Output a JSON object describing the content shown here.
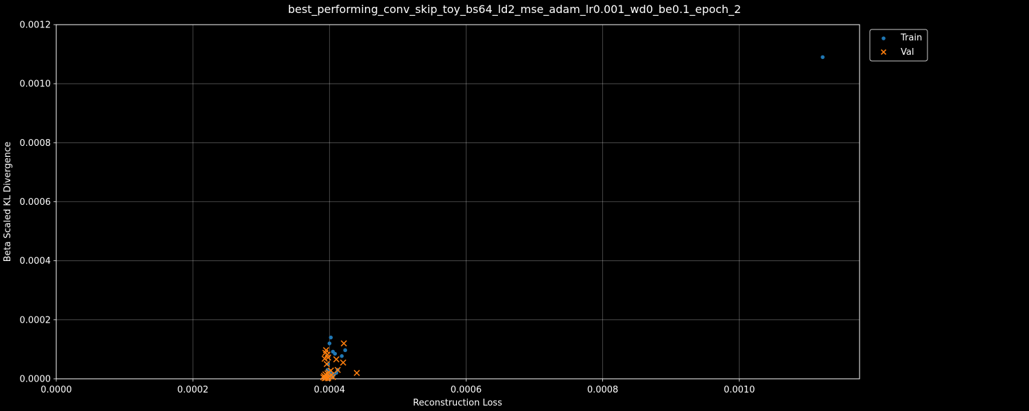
{
  "chart_data": {
    "type": "scatter",
    "title": "best_performing_conv_skip_toy_bs64_ld2_mse_adam_lr0.001_wd0_be0.1_epoch_2",
    "xlabel": "Reconstruction Loss",
    "ylabel": "Beta Scaled KL Divergence",
    "xlim": [
      0,
      0.001176
    ],
    "ylim": [
      0,
      0.0012
    ],
    "xticks": [
      "0.0000",
      "0.0002",
      "0.0004",
      "0.0006",
      "0.0008",
      "0.0010"
    ],
    "yticks": [
      "0.0000",
      "0.0002",
      "0.0004",
      "0.0006",
      "0.0008",
      "0.0010",
      "0.0012"
    ],
    "grid": true,
    "legend_position": "outside-top-right",
    "series": [
      {
        "name": "Train",
        "marker": "circle",
        "color": "#1f77b4",
        "points": [
          [
            0.001122,
            0.00109
          ],
          [
            0.000402,
            0.00014
          ],
          [
            0.0004,
            0.00012
          ],
          [
            0.000405,
            9.2e-05
          ],
          [
            0.000408,
            8.5e-05
          ],
          [
            0.000423,
            9.7e-05
          ],
          [
            0.000418,
            7.7e-05
          ],
          [
            0.000412,
            3e-05
          ],
          [
            0.00041,
            2e-05
          ],
          [
            0.000398,
            5e-05
          ],
          [
            0.000397,
            3e-05
          ],
          [
            0.000399,
            2.5e-05
          ],
          [
            0.000401,
            2e-05
          ],
          [
            0.000403,
            1.5e-05
          ],
          [
            0.000396,
            1e-05
          ],
          [
            0.000395,
            5e-06
          ],
          [
            0.000404,
            8e-06
          ],
          [
            0.000406,
            1.2e-05
          ]
        ]
      },
      {
        "name": "Val",
        "marker": "x",
        "color": "#ff7f0e",
        "points": [
          [
            0.000421,
            0.00012
          ],
          [
            0.000395,
            9.7e-05
          ],
          [
            0.000394,
            8.8e-05
          ],
          [
            0.000397,
            8.2e-05
          ],
          [
            0.000393,
            6.8e-05
          ],
          [
            0.000398,
            7.2e-05
          ],
          [
            0.00041,
            6.6e-05
          ],
          [
            0.00042,
            5.5e-05
          ],
          [
            0.000396,
            5e-05
          ],
          [
            0.000412,
            3e-05
          ],
          [
            0.00044,
            2e-05
          ],
          [
            0.000402,
            2.8e-05
          ],
          [
            0.000399,
            2.2e-05
          ],
          [
            0.000397,
            1.8e-05
          ],
          [
            0.000394,
            1.5e-05
          ],
          [
            0.000392,
            1e-05
          ],
          [
            0.000391,
            5e-06
          ],
          [
            0.000395,
            3e-06
          ],
          [
            0.0004,
            8e-06
          ],
          [
            0.000403,
            1.2e-05
          ],
          [
            0.000405,
            6e-06
          ],
          [
            0.000398,
            2e-06
          ],
          [
            0.000393,
            2e-06
          ]
        ]
      }
    ]
  }
}
